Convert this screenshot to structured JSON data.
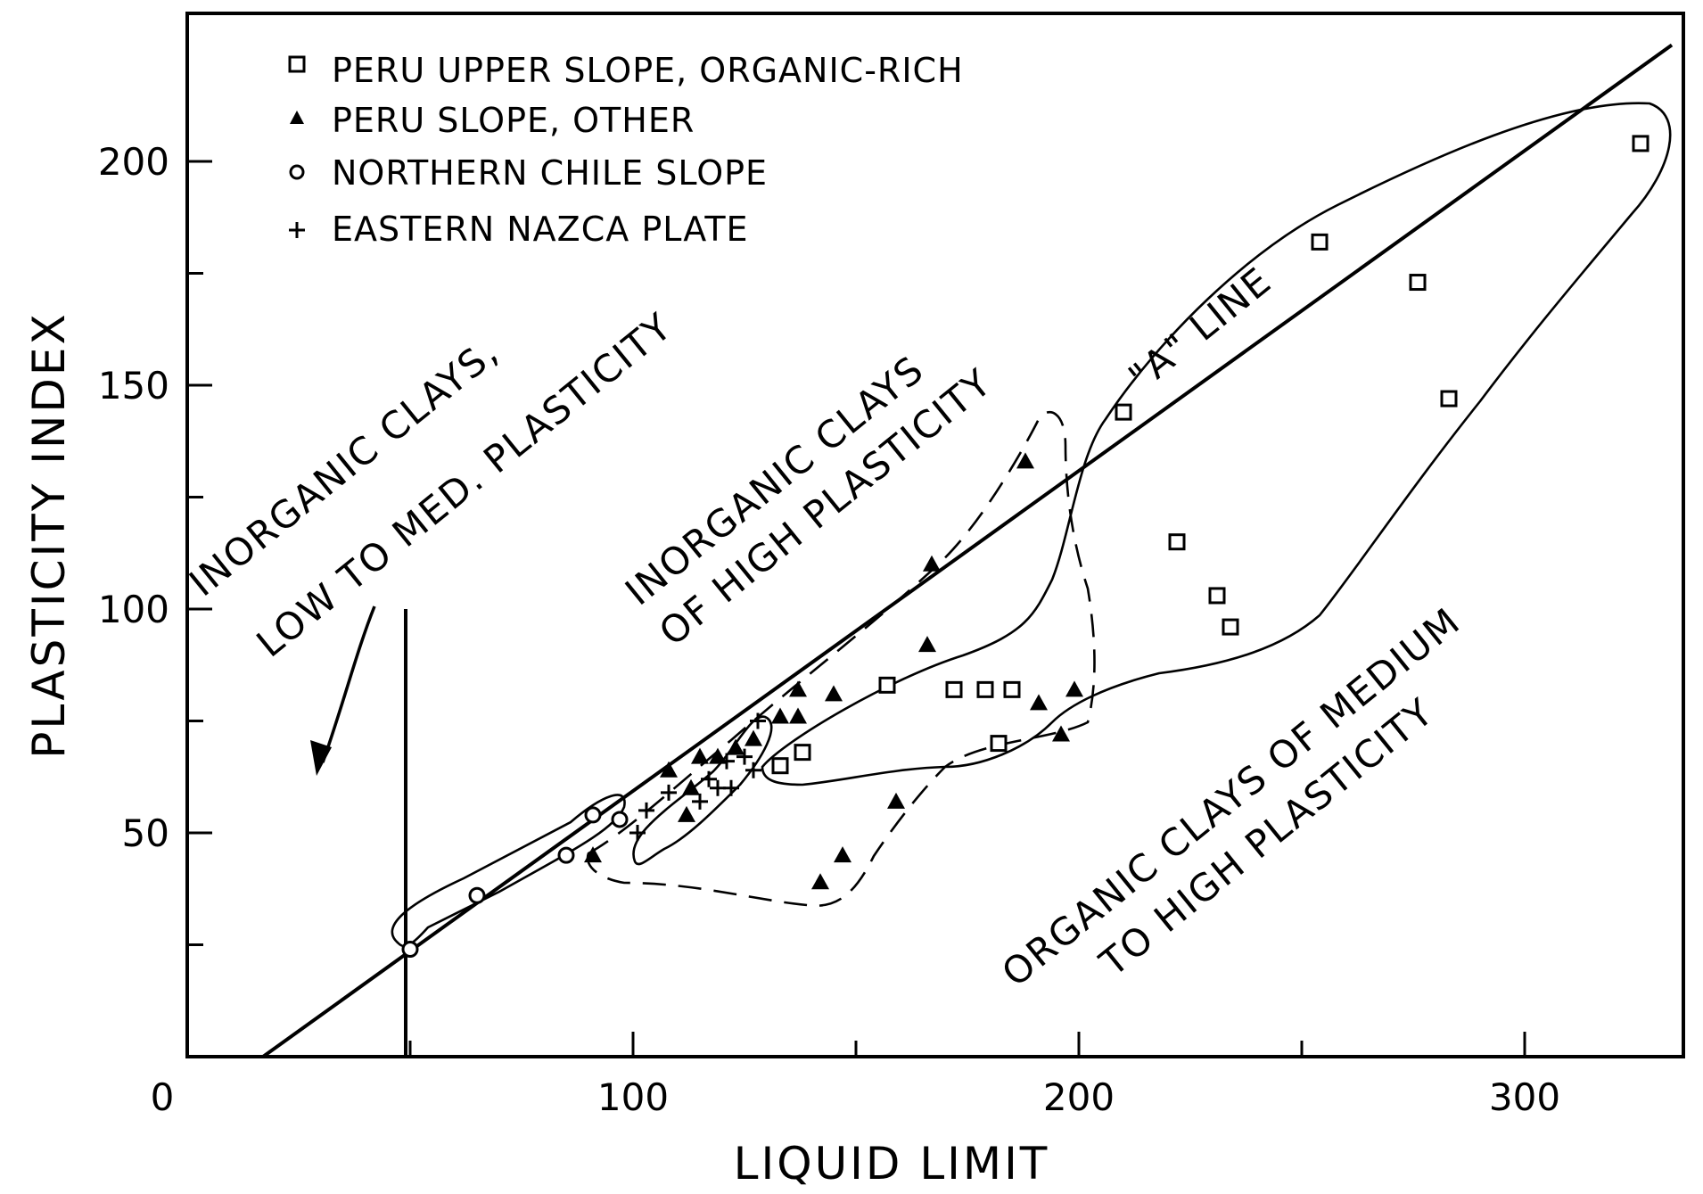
{
  "chart_data": {
    "type": "scatter",
    "xlabel": "LIQUID LIMIT",
    "ylabel": "PLASTICITY INDEX",
    "xlim": [
      0,
      333
    ],
    "ylim": [
      0,
      228
    ],
    "x_major_ticks": [
      0,
      100,
      200,
      300
    ],
    "x_minor_ticks": [
      50,
      150,
      250
    ],
    "y_major_ticks": [
      50,
      100,
      150,
      200
    ],
    "y_minor_ticks": [
      25,
      75,
      125,
      175
    ],
    "x_tick_labels": [
      "0",
      "100",
      "200",
      "300"
    ],
    "y_tick_labels": [
      "50",
      "100",
      "150",
      "200"
    ],
    "legend_position": "top-left",
    "series": [
      {
        "name": "PERU UPPER SLOPE, ORGANIC-RICH",
        "marker": "square-open",
        "points": [
          [
            133,
            65
          ],
          [
            138,
            68
          ],
          [
            157,
            83
          ],
          [
            172,
            82
          ],
          [
            179,
            82
          ],
          [
            185,
            82
          ],
          [
            182,
            70
          ],
          [
            210,
            144
          ],
          [
            222,
            115
          ],
          [
            231,
            103
          ],
          [
            234,
            96
          ],
          [
            254,
            182
          ],
          [
            276,
            173
          ],
          [
            283,
            147
          ],
          [
            326,
            204
          ]
        ]
      },
      {
        "name": "PERU SLOPE, OTHER",
        "marker": "triangle-filled",
        "points": [
          [
            91,
            45
          ],
          [
            108,
            64
          ],
          [
            112,
            54
          ],
          [
            113,
            60
          ],
          [
            115,
            67
          ],
          [
            119,
            67
          ],
          [
            123,
            69
          ],
          [
            127,
            71
          ],
          [
            133,
            76
          ],
          [
            137,
            76
          ],
          [
            137,
            82
          ],
          [
            145,
            81
          ],
          [
            142,
            39
          ],
          [
            147,
            45
          ],
          [
            159,
            57
          ],
          [
            166,
            92
          ],
          [
            167,
            110
          ],
          [
            188,
            133
          ],
          [
            191,
            79
          ],
          [
            196,
            72
          ],
          [
            199,
            82
          ]
        ]
      },
      {
        "name": "NORTHERN CHILE SLOPE",
        "marker": "circle-open",
        "points": [
          [
            50,
            24
          ],
          [
            65,
            36
          ],
          [
            85,
            45
          ],
          [
            91,
            54
          ],
          [
            97,
            53
          ]
        ]
      },
      {
        "name": "EASTERN NAZCA PLATE",
        "marker": "plus",
        "points": [
          [
            101,
            50
          ],
          [
            103,
            55
          ],
          [
            108,
            59
          ],
          [
            115,
            57
          ],
          [
            117,
            62
          ],
          [
            119,
            60
          ],
          [
            121,
            66
          ],
          [
            122,
            60
          ],
          [
            125,
            67
          ],
          [
            127,
            64
          ],
          [
            128,
            75
          ]
        ]
      }
    ],
    "reference_lines": [
      {
        "name": "\"A\" LINE",
        "from": [
          17,
          0
        ],
        "to": [
          333,
          226
        ]
      },
      {
        "name": "",
        "from": [
          49,
          0
        ],
        "to": [
          49,
          100
        ]
      }
    ],
    "region_labels": [
      "INORGANIC CLAYS,",
      "LOW TO MED. PLASTICITY",
      "INORGANIC CLAYS",
      "OF HIGH PLASTICITY",
      "ORGANIC CLAYS OF MEDIUM",
      "TO HIGH PLASTICITY",
      "\"A\" LINE"
    ]
  }
}
